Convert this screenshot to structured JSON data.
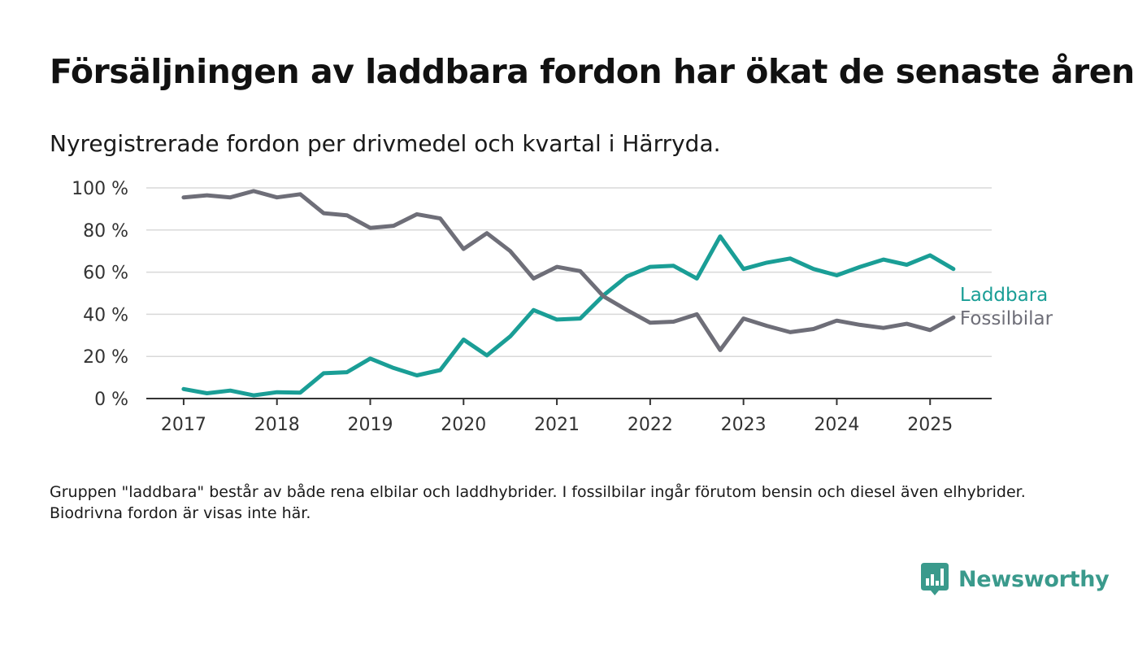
{
  "header": {
    "title": "Försäljningen av laddbara fordon har ökat de senaste åren",
    "subtitle": "Nyregistrerade fordon per drivmedel och kvartal i Härryda."
  },
  "footer": {
    "note": "Gruppen \"laddbara\" består av både rena elbilar och laddhybrider. I fossilbilar ingår förutom bensin och diesel även elhybrider. Biodrivna fordon är visas inte här.",
    "brand_name": "Newsworthy",
    "brand_icon": "bar-chart-speech-icon"
  },
  "colors": {
    "laddbara": "#1a9e96",
    "fossilbilar": "#6e6e78",
    "grid": "#d9d9d9",
    "axis": "#333333",
    "brand": "#3a9a8c"
  },
  "chart_data": {
    "type": "line",
    "title": "",
    "xlabel": "",
    "ylabel": "",
    "ylim": [
      0,
      100
    ],
    "yticks": [
      0,
      20,
      40,
      60,
      80,
      100
    ],
    "ytick_labels": [
      "0 %",
      "20 %",
      "40 %",
      "60 %",
      "80 %",
      "100 %"
    ],
    "xticks": [
      2017,
      2018,
      2019,
      2020,
      2021,
      2022,
      2023,
      2024,
      2025
    ],
    "xtick_labels": [
      "2017",
      "2018",
      "2019",
      "2020",
      "2021",
      "2022",
      "2023",
      "2024",
      "2025"
    ],
    "xlim": [
      2016.6,
      2025.66
    ],
    "grid": true,
    "legend": "line-end labels",
    "x": [
      2017,
      2017.25,
      2017.5,
      2017.75,
      2018,
      2018.25,
      2018.5,
      2018.75,
      2019,
      2019.25,
      2019.5,
      2019.75,
      2020,
      2020.25,
      2020.5,
      2020.75,
      2021,
      2021.25,
      2021.5,
      2021.75,
      2022,
      2022.25,
      2022.5,
      2022.75,
      2023,
      2023.25,
      2023.5,
      2023.75,
      2024,
      2024.25,
      2024.5,
      2024.75,
      2025,
      2025.25
    ],
    "series": [
      {
        "name": "Laddbara",
        "color": "#1a9e96",
        "values": [
          4.5,
          2.5,
          3.8,
          1.5,
          3,
          2.8,
          12,
          12.5,
          19,
          14.5,
          11,
          13.5,
          28,
          20.5,
          29.5,
          42,
          37.5,
          38,
          49,
          58,
          62.5,
          63,
          57,
          77,
          61.5,
          64.5,
          66.5,
          61.5,
          58.5,
          62.5,
          66,
          63.5,
          68,
          61.5
        ]
      },
      {
        "name": "Fossilbilar",
        "color": "#6e6e78",
        "values": [
          95.5,
          96.5,
          95.5,
          98.5,
          95.5,
          97,
          88,
          87,
          81,
          82,
          87.5,
          85.5,
          71,
          78.5,
          70,
          57,
          62.5,
          60.5,
          48.5,
          42,
          36,
          36.5,
          40,
          23,
          38,
          34.5,
          31.5,
          33,
          37,
          35,
          33.5,
          35.5,
          32.5,
          38.5
        ]
      }
    ]
  }
}
